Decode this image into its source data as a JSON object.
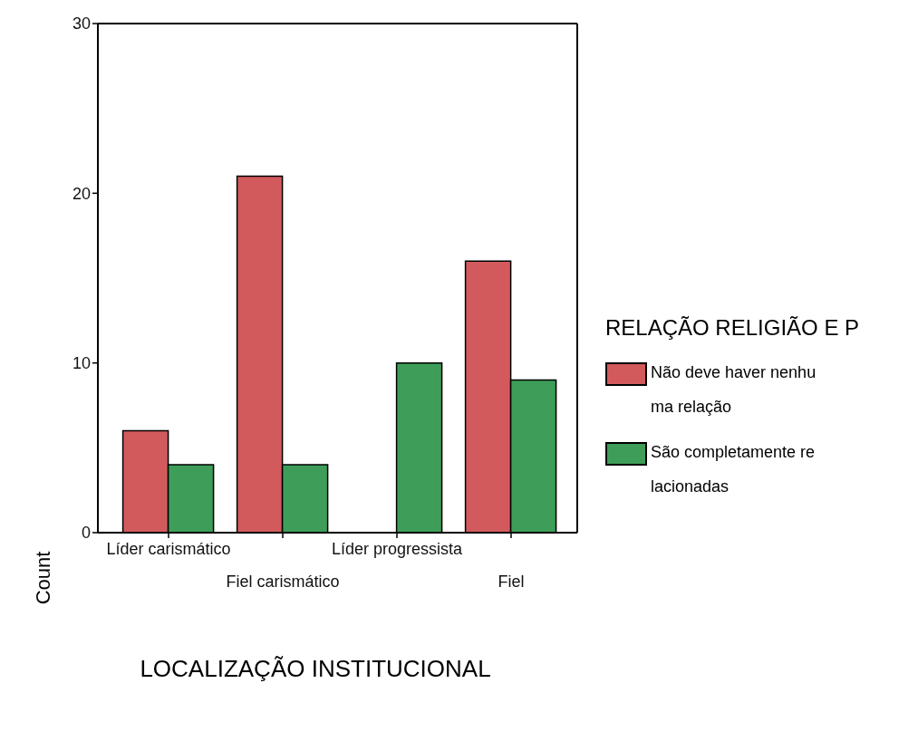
{
  "chart_data": {
    "type": "bar",
    "xlabel": "LOCALIZAÇÃO INSTITUCIONAL",
    "ylabel": "Count",
    "legend_title": "RELAÇÃO RELIGIÃO E P",
    "categories": [
      "Líder carismático",
      "Fiel carismático",
      "Líder progressista",
      "Fiel"
    ],
    "series": [
      {
        "name": "Não deve haver nenhuma relação",
        "color": "#d35a5c",
        "values": [
          6,
          21,
          null,
          16
        ]
      },
      {
        "name": "São completamente relacionadas",
        "color": "#3e9e59",
        "values": [
          4,
          4,
          10,
          9
        ]
      }
    ],
    "ylim": [
      0,
      30
    ],
    "yticks": [
      0,
      10,
      20,
      30
    ],
    "legend": "right"
  }
}
